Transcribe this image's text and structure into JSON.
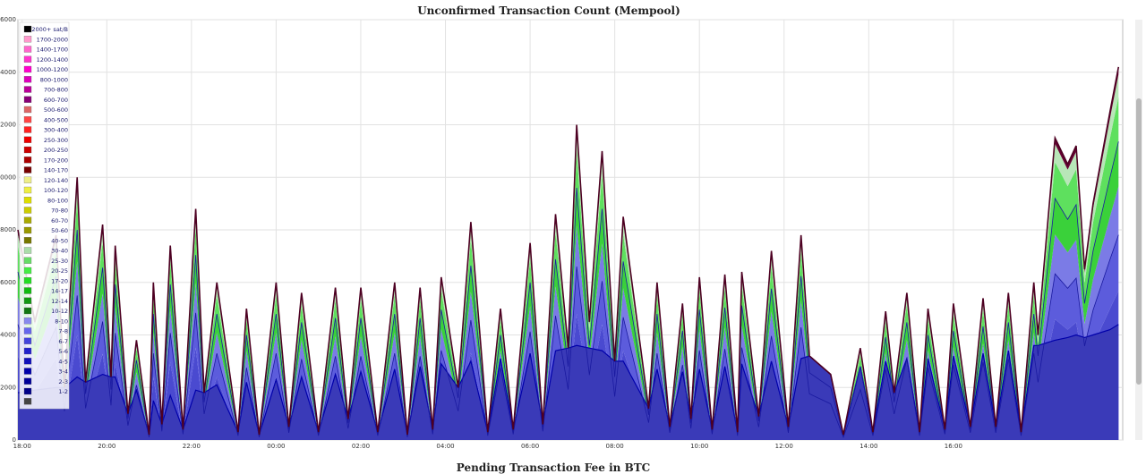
{
  "chart_data": {
    "type": "area",
    "title": "Unconfirmed Transaction Count (Mempool)",
    "bottom_title": "Pending Transaction Fee in BTC",
    "xlabel": "",
    "ylabel": "",
    "x_ticks": [
      "18:00",
      "20:00",
      "22:00",
      "00:00",
      "02:00",
      "04:00",
      "06:00",
      "08:00",
      "10:00",
      "12:00",
      "14:00",
      "16:00"
    ],
    "y_ticks": [
      0,
      2000,
      4000,
      6000,
      8000,
      10000,
      12000,
      14000,
      16000
    ],
    "ylim": [
      0,
      16000
    ],
    "grid": true,
    "legend_position": "top-left",
    "legend": [
      {
        "label": "2000+ sat/B",
        "color": "#000000"
      },
      {
        "label": "1700-2000",
        "color": "#ff99cc"
      },
      {
        "label": "1400-1700",
        "color": "#ff66cc"
      },
      {
        "label": "1200-1400",
        "color": "#ff33cc"
      },
      {
        "label": "1000-1200",
        "color": "#ff00cc"
      },
      {
        "label": "800-1000",
        "color": "#dd00bb"
      },
      {
        "label": "700-800",
        "color": "#bb0099"
      },
      {
        "label": "600-700",
        "color": "#880077"
      },
      {
        "label": "500-600",
        "color": "#dd6666"
      },
      {
        "label": "400-500",
        "color": "#ff4444"
      },
      {
        "label": "300-400",
        "color": "#ff2222"
      },
      {
        "label": "250-300",
        "color": "#ee0000"
      },
      {
        "label": "200-250",
        "color": "#cc0000"
      },
      {
        "label": "170-200",
        "color": "#aa0000"
      },
      {
        "label": "140-170",
        "color": "#770000"
      },
      {
        "label": "120-140",
        "color": "#eeee88"
      },
      {
        "label": "100-120",
        "color": "#eeee44"
      },
      {
        "label": "80-100",
        "color": "#dddd00"
      },
      {
        "label": "70-80",
        "color": "#cccc00"
      },
      {
        "label": "60-70",
        "color": "#aaaa00"
      },
      {
        "label": "50-60",
        "color": "#999900"
      },
      {
        "label": "40-50",
        "color": "#777700"
      },
      {
        "label": "30-40",
        "color": "#aaddaa"
      },
      {
        "label": "25-30",
        "color": "#66dd66"
      },
      {
        "label": "20-25",
        "color": "#44ee44"
      },
      {
        "label": "17-20",
        "color": "#22dd22"
      },
      {
        "label": "14-17",
        "color": "#11bb11"
      },
      {
        "label": "12-14",
        "color": "#119911"
      },
      {
        "label": "10-12",
        "color": "#117711"
      },
      {
        "label": "8-10",
        "color": "#8888ee"
      },
      {
        "label": "7-8",
        "color": "#6666ee"
      },
      {
        "label": "6-7",
        "color": "#4444dd"
      },
      {
        "label": "5-6",
        "color": "#2222cc"
      },
      {
        "label": "4-5",
        "color": "#1111bb"
      },
      {
        "label": "3-4",
        "color": "#0000aa"
      },
      {
        "label": "2-3",
        "color": "#000099"
      },
      {
        "label": "1-2",
        "color": "#000088"
      },
      {
        "label": "",
        "color": "#444444"
      }
    ],
    "total_series": {
      "x": [
        17.9,
        18.3,
        18.8,
        19.0,
        19.3,
        19.5,
        19.9,
        20.1,
        20.2,
        20.5,
        20.7,
        21.0,
        21.1,
        21.3,
        21.5,
        21.8,
        22.1,
        22.3,
        22.6,
        23.1,
        23.3,
        23.6,
        24.0,
        24.3,
        24.6,
        25.0,
        25.4,
        25.7,
        26.0,
        26.4,
        26.8,
        27.1,
        27.4,
        27.7,
        27.9,
        28.3,
        28.6,
        29.0,
        29.3,
        29.6,
        30.0,
        30.3,
        30.6,
        30.9,
        31.1,
        31.4,
        31.7,
        32.0,
        32.2,
        32.8,
        33.0,
        33.3,
        33.6,
        33.8,
        34.0,
        34.3,
        34.6,
        34.9,
        35.0,
        35.4,
        35.7,
        36.1,
        36.4,
        36.6,
        37.1,
        37.4,
        37.8,
        38.1,
        38.4,
        38.6,
        38.9,
        39.2,
        39.4,
        39.8,
        40.0,
        40.4,
        40.7,
        41.0,
        41.3,
        41.6,
        41.9,
        42.0,
        42.4,
        42.7,
        42.9,
        43.1,
        43.3,
        43.7,
        43.9
      ],
      "y": [
        8000,
        4500,
        7800,
        2000,
        10000,
        2200,
        8200,
        2400,
        7400,
        1000,
        3800,
        200,
        6000,
        600,
        7400,
        400,
        8800,
        1800,
        6000,
        300,
        5000,
        200,
        6000,
        500,
        5600,
        300,
        5800,
        800,
        5800,
        300,
        6000,
        200,
        5800,
        400,
        6200,
        2000,
        8300,
        300,
        5000,
        400,
        7500,
        600,
        8600,
        3500,
        12000,
        4500,
        11000,
        3000,
        8500,
        1200,
        6000,
        500,
        5200,
        800,
        6200,
        400,
        6300,
        300,
        6400,
        900,
        7200,
        500,
        7800,
        3200,
        2500,
        200,
        3500,
        300,
        4900,
        1800,
        5600,
        300,
        5000,
        400,
        5200,
        500,
        5400,
        500,
        5600,
        300,
        6000,
        4000,
        11500,
        10500,
        11200,
        6500,
        9000,
        12500,
        14200
      ]
    },
    "band_series": [
      {
        "name": "",
        "values": [
          1800,
          1900,
          2000,
          2200,
          2400,
          2400,
          2500,
          2500,
          2400,
          2100,
          1900,
          1400,
          1500,
          1600,
          1700,
          1700,
          1900,
          2000,
          2100,
          2100,
          2200,
          2200,
          2300,
          2300,
          2400,
          2400,
          2500,
          2500,
          2600,
          2600,
          2700,
          2700,
          2800,
          2800,
          2900,
          2900,
          3000,
          3000,
          3100,
          3100,
          3300,
          3300,
          3400,
          3500,
          3600,
          3500,
          3400,
          3200,
          3000,
          2800,
          2700,
          2600,
          2600,
          2600,
          2700,
          2700,
          2800,
          2800,
          2900,
          2900,
          3000,
          3000,
          3100,
          3200,
          3000,
          2800,
          2800,
          2900,
          3000,
          3000,
          3100,
          3100,
          3100,
          3200,
          3200,
          3300,
          3300,
          3400,
          3400,
          3500,
          3600,
          3600,
          3800,
          3900,
          4000,
          3900,
          4000,
          4200,
          4400
        ]
      }
    ]
  }
}
